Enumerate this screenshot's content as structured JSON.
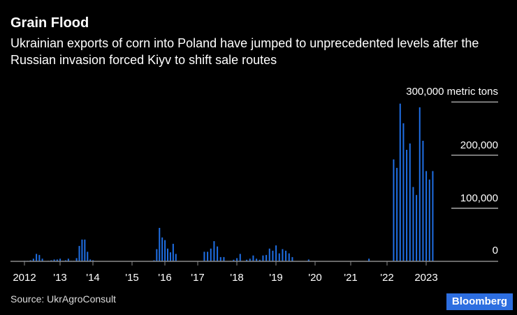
{
  "title": "Grain Flood",
  "subtitle": "Ukrainian exports of corn into Poland have jumped to unprecedented levels after the Russian invasion forced Kiyv to shift sale routes",
  "source": "Source: UkrAgroConsult",
  "brand": "Bloomberg",
  "colors": {
    "bar": "#1f6fe5",
    "axis": "#8a8a8a",
    "grid": "#bbbbbb",
    "brand": "#2d6ee0"
  },
  "chart_data": {
    "type": "bar",
    "title": "",
    "xlabel": "",
    "ylabel": "",
    "unit": "metric tons",
    "ylim": [
      0,
      300000
    ],
    "grid": true,
    "x_tick_labels": [
      "2012",
      "'13",
      "'14",
      "'15",
      "'16",
      "'17",
      "'18",
      "'19",
      "'20",
      "'21",
      "'22",
      "2023"
    ],
    "y_tick_labels": [
      "0",
      "100,000",
      "200,000",
      "300,000 metric tons"
    ],
    "y_ticks": [
      0,
      100000,
      200000,
      300000
    ],
    "frequency": "monthly",
    "start": "2012-01",
    "end": "2023-03",
    "values_thousand_tons": [
      1,
      1,
      2,
      5,
      14,
      12,
      5,
      0.5,
      1,
      2,
      3.5,
      3.5,
      5,
      1,
      2,
      5,
      1,
      1,
      6,
      29,
      41,
      41,
      18,
      3.5,
      2,
      0.5,
      0.5,
      0.5,
      0.5,
      0.5,
      0.5,
      0.5,
      0.5,
      0.5,
      0.5,
      0.5,
      0.5,
      0.5,
      0.5,
      0.5,
      0.5,
      0.5,
      0.5,
      0.5,
      2,
      23,
      63,
      45,
      40,
      24,
      17,
      33,
      14,
      0.5,
      0.5,
      0.5,
      0.5,
      0.5,
      0.5,
      0.5,
      0.5,
      0.5,
      18,
      18,
      24,
      38,
      28,
      8,
      8,
      0.5,
      1,
      3,
      6,
      14,
      0.5,
      3,
      5,
      11,
      5,
      3,
      11,
      12,
      24,
      20,
      30,
      15,
      23,
      20,
      15,
      8,
      0.5,
      0.5,
      0.5,
      0.5,
      3.5,
      0.5,
      0.5,
      0.5,
      0.5,
      0.5,
      0.5,
      0.5,
      0.5,
      0.5,
      0.5,
      0.5,
      0.5,
      0.5,
      0.5,
      0.5,
      0.5,
      0.5,
      0.5,
      0.5,
      5,
      0.5,
      0.5,
      0.5,
      0.5,
      0.5,
      0.5,
      0.5,
      192,
      176,
      297,
      260,
      210,
      222,
      140,
      125,
      290,
      227,
      170,
      154,
      170
    ]
  }
}
